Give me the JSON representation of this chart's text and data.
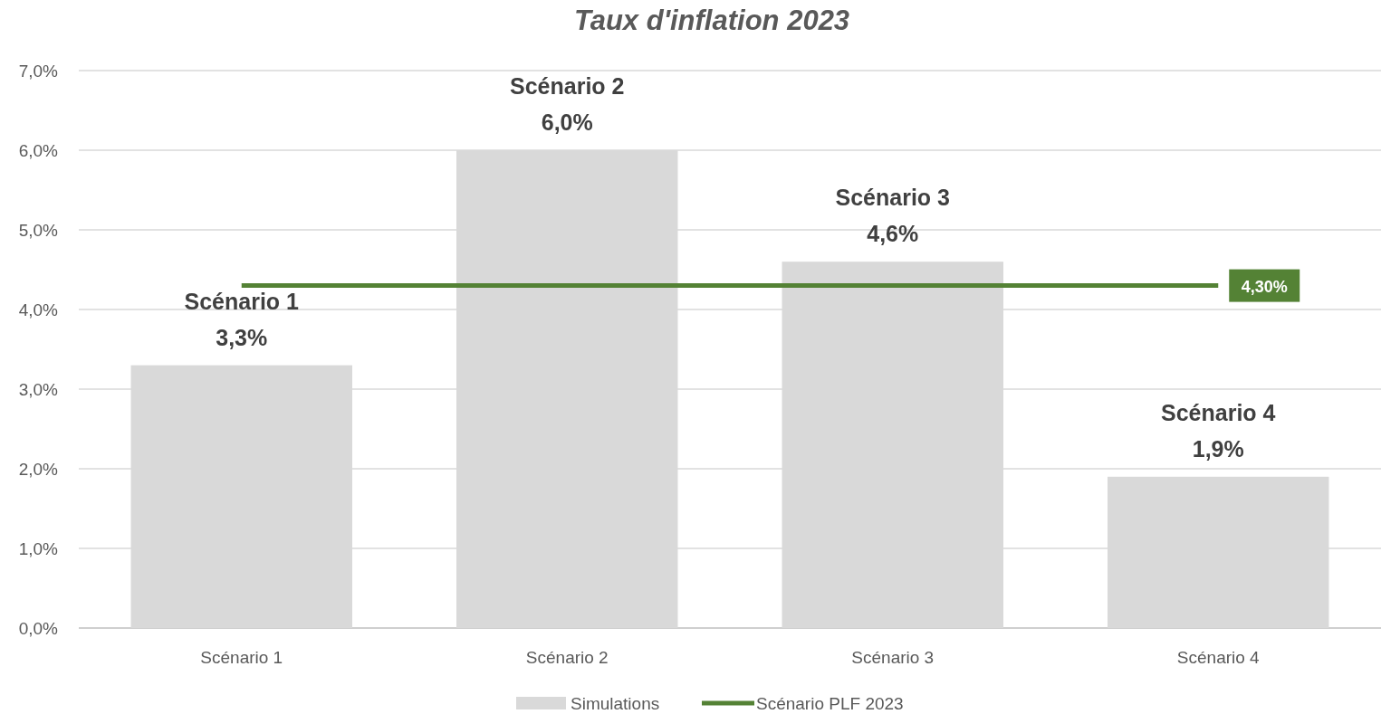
{
  "chart_data": {
    "type": "bar",
    "title": "Taux d'inflation 2023",
    "categories": [
      "Scénario 1",
      "Scénario 2",
      "Scénario 3",
      "Scénario 4"
    ],
    "series": [
      {
        "name": "Simulations",
        "color": "#d9d9d9",
        "values": [
          3.3,
          6.0,
          4.6,
          1.9
        ],
        "value_labels": [
          "3,3%",
          "6,0%",
          "4,6%",
          "1,9%"
        ]
      },
      {
        "name": "Scénario PLF 2023",
        "type": "line",
        "color": "#548235",
        "values": [
          4.3,
          4.3,
          4.3,
          4.3
        ],
        "value_labels": [
          null,
          null,
          null,
          "4,30%"
        ]
      }
    ],
    "ylim": [
      0,
      7
    ],
    "yticks": [
      {
        "value": 0,
        "label": "0,0%"
      },
      {
        "value": 1,
        "label": "1,0%"
      },
      {
        "value": 2,
        "label": "2,0%"
      },
      {
        "value": 3,
        "label": "3,0%"
      },
      {
        "value": 4,
        "label": "4,0%"
      },
      {
        "value": 5,
        "label": "5,0%"
      },
      {
        "value": 6,
        "label": "6,0%"
      },
      {
        "value": 7,
        "label": "7,0%"
      }
    ],
    "grid": "y",
    "legend": "bottom",
    "marker": "none"
  }
}
